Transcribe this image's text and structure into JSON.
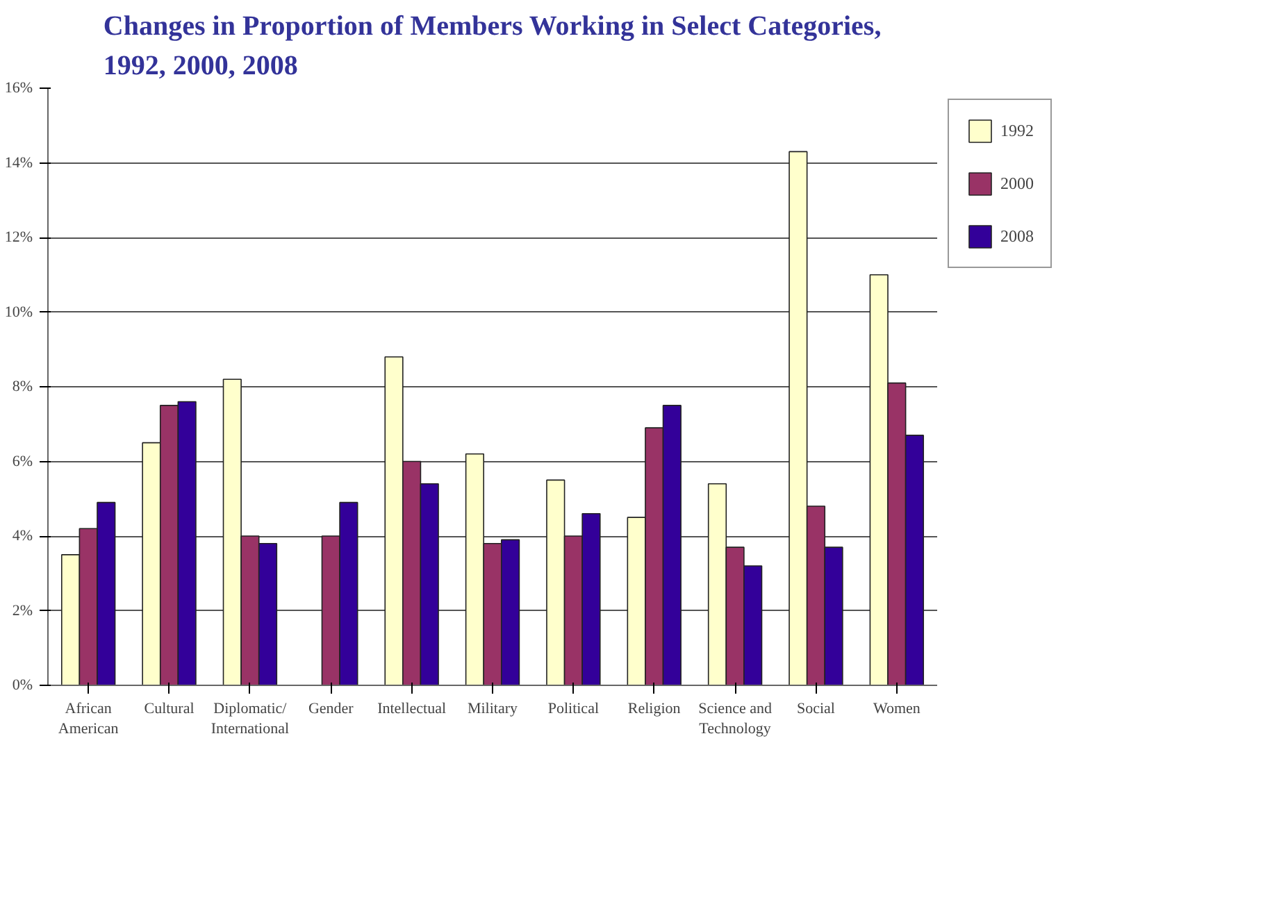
{
  "chart_data": {
    "type": "bar",
    "title": "Changes in Proportion of Members Working in Select Categories,\n1992, 2000, 2008",
    "categories": [
      "African\nAmerican",
      "Cultural",
      "Diplomatic/\nInternational",
      "Gender",
      "Intellectual",
      "Military",
      "Political",
      "Religion",
      "Science and\nTechnology",
      "Social",
      "Women"
    ],
    "series": [
      {
        "name": "1992",
        "color": "#ffffcc",
        "values": [
          3.5,
          6.5,
          8.2,
          null,
          8.8,
          6.2,
          5.5,
          4.5,
          5.4,
          14.3,
          11.0
        ]
      },
      {
        "name": "2000",
        "color": "#993366",
        "values": [
          4.2,
          7.5,
          4.0,
          4.0,
          6.0,
          3.8,
          4.0,
          6.9,
          3.7,
          4.8,
          8.1
        ]
      },
      {
        "name": "2008",
        "color": "#330099",
        "values": [
          4.9,
          7.6,
          3.8,
          4.9,
          5.4,
          3.9,
          4.6,
          7.5,
          3.2,
          3.7,
          6.7
        ]
      }
    ],
    "ylim": [
      0,
      16
    ],
    "yticks": [
      {
        "value": 0,
        "label": "0%"
      },
      {
        "value": 2,
        "label": "2%"
      },
      {
        "value": 4,
        "label": "4%"
      },
      {
        "value": 6,
        "label": "6%"
      },
      {
        "value": 8,
        "label": "8%"
      },
      {
        "value": 10,
        "label": "10%"
      },
      {
        "value": 12,
        "label": "12%"
      },
      {
        "value": 14,
        "label": "14%"
      },
      {
        "value": 16,
        "label": "16%"
      }
    ],
    "grid": "y",
    "legend": "top right"
  }
}
